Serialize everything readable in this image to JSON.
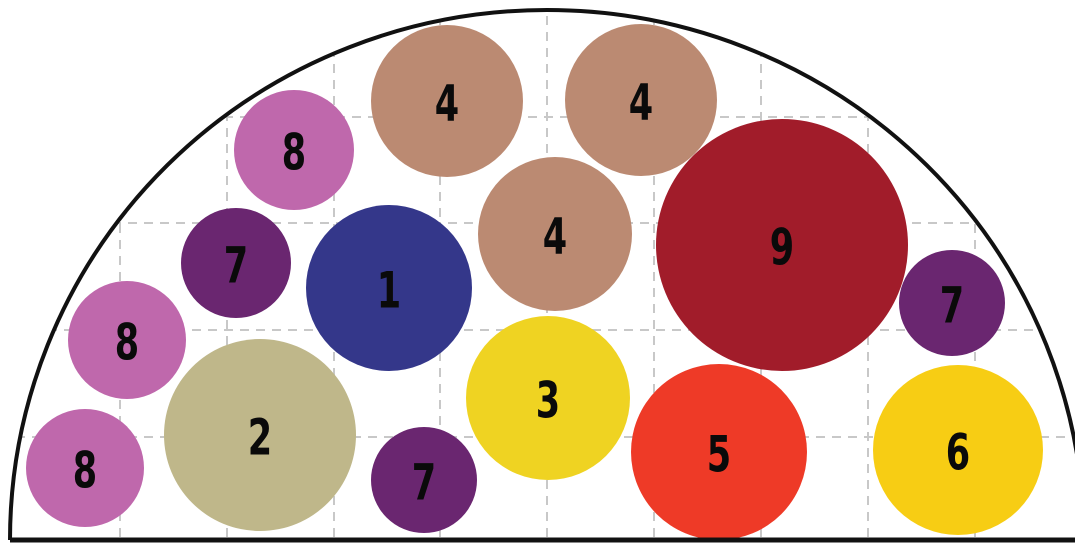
{
  "palette": {
    "1": "#34378a",
    "2": "#bfb78a",
    "3": "#efd322",
    "4": "#bb8a72",
    "5": "#ee3a27",
    "6": "#f7cd14",
    "7": "#6a2670",
    "8": "#bf68ac",
    "9": "#a11c2a"
  },
  "circles": [
    {
      "label": "4"
    },
    {
      "label": "4"
    },
    {
      "label": "8"
    },
    {
      "label": "7"
    },
    {
      "label": "1"
    },
    {
      "label": "4"
    },
    {
      "label": "9"
    },
    {
      "label": "7"
    },
    {
      "label": "8"
    },
    {
      "label": "2"
    },
    {
      "label": "3"
    },
    {
      "label": "8"
    },
    {
      "label": "7"
    },
    {
      "label": "5"
    },
    {
      "label": "6"
    }
  ]
}
